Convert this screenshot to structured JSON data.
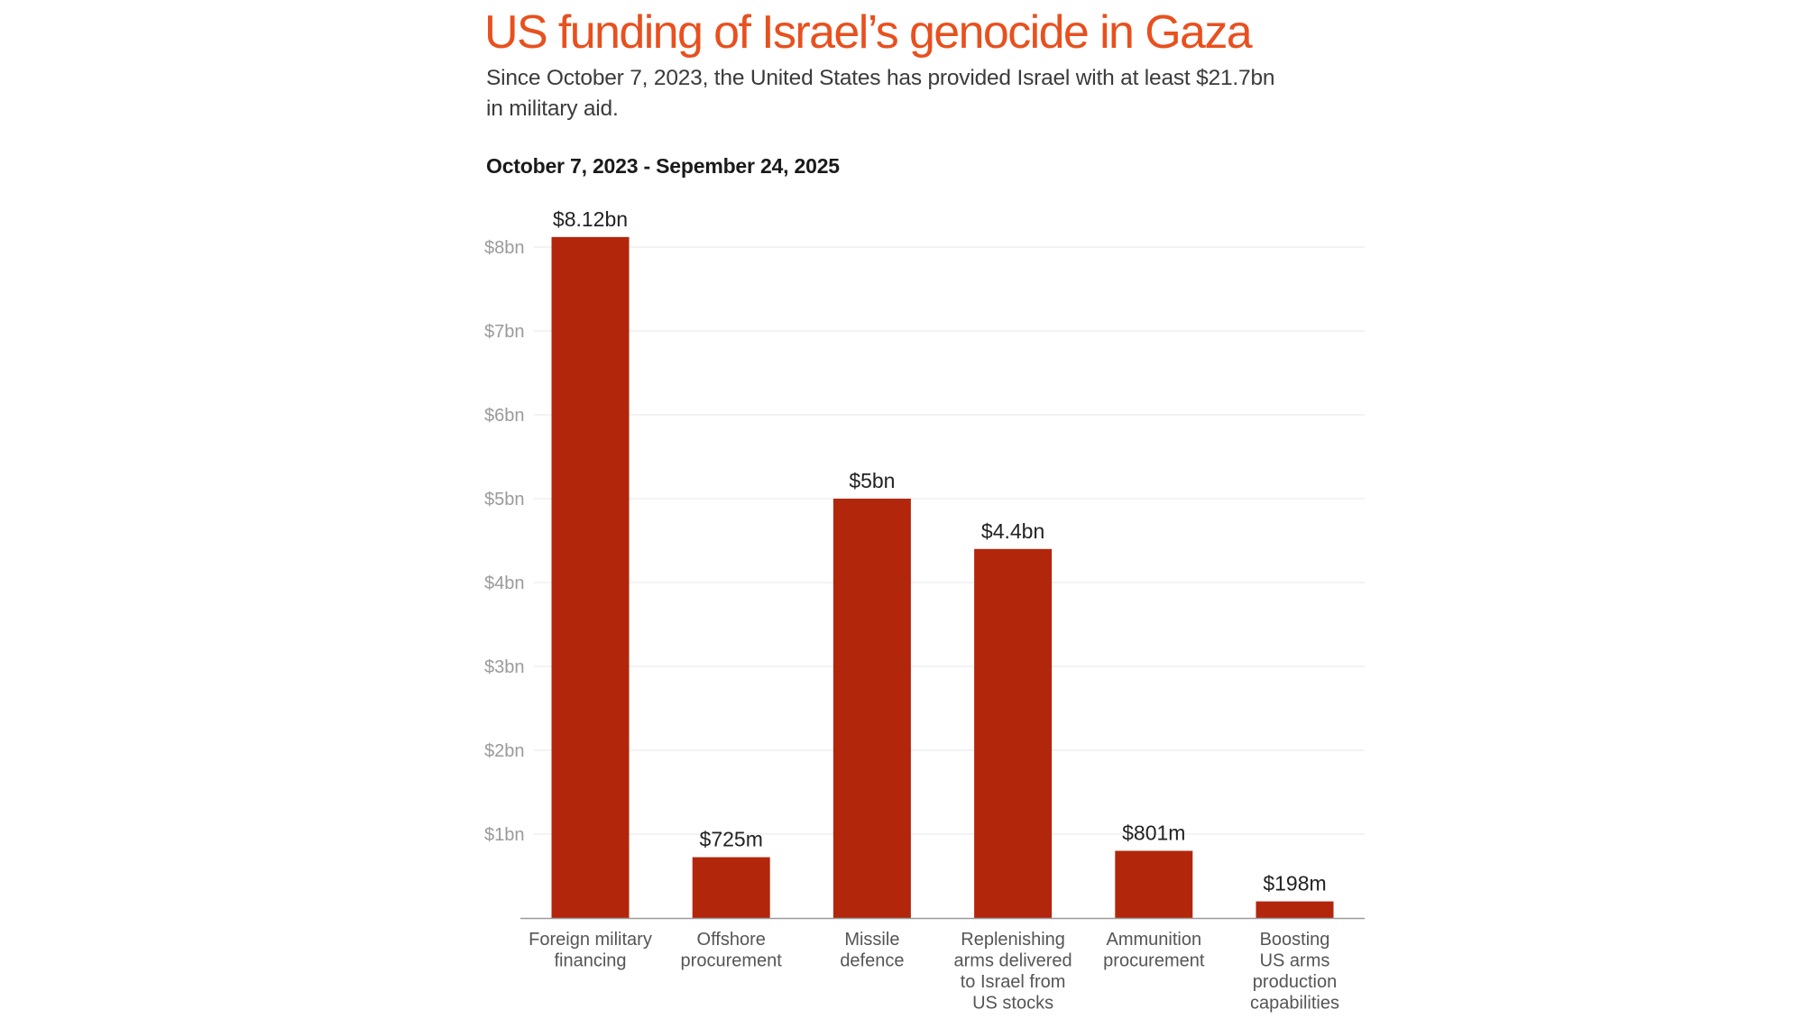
{
  "header": {
    "title": "US funding of Israel’s genocide in Gaza",
    "subtitle": "Since October 7, 2023, the United States has provided Israel with at least $21.7bn in military aid.",
    "period": "October 7, 2023 - Sepember 24, 2025"
  },
  "colors": {
    "title": "#e8501e",
    "bar": "#b2260c",
    "gridline": "#efefef",
    "axis": "#9a9a9a"
  },
  "chart_data": {
    "type": "bar",
    "title": "US funding of Israel’s genocide in Gaza",
    "subtitle": "October 7, 2023 - Sepember 24, 2025",
    "xlabel": "",
    "ylabel": "",
    "unit": "billion USD",
    "ylim": [
      0,
      8
    ],
    "grid": true,
    "legend": "none",
    "yticks": [
      1,
      2,
      3,
      4,
      5,
      6,
      7,
      8
    ],
    "ytick_labels": [
      "$1bn",
      "$2bn",
      "$3bn",
      "$4bn",
      "$5bn",
      "$6bn",
      "$7bn",
      "$8bn"
    ],
    "categories": [
      [
        "Foreign military",
        "financing"
      ],
      [
        "Offshore",
        "procurement"
      ],
      [
        "Missile",
        "defence"
      ],
      [
        "Replenishing",
        "arms delivered",
        "to Israel from",
        "US stocks"
      ],
      [
        "Ammunition",
        "procurement"
      ],
      [
        "Boosting",
        "US arms",
        "production",
        "capabilities"
      ]
    ],
    "values": [
      8.12,
      0.725,
      5.0,
      4.4,
      0.801,
      0.198
    ],
    "data_labels": [
      "$8.12bn",
      "$725m",
      "$5bn",
      "$4.4bn",
      "$801m",
      "$198m"
    ]
  }
}
